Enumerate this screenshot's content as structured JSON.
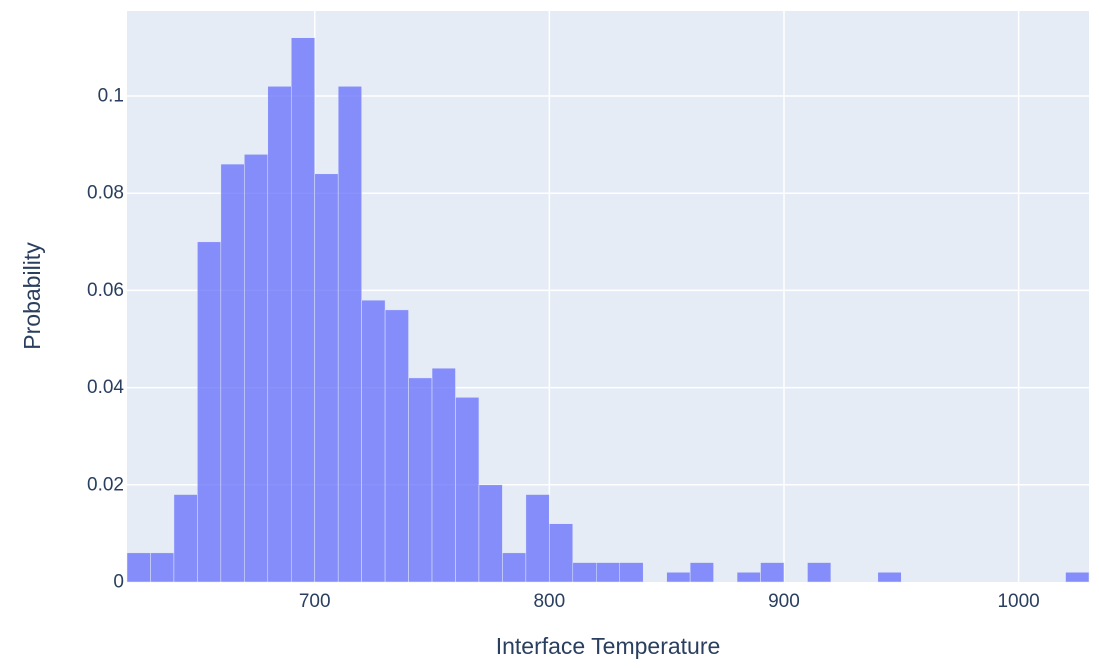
{
  "chart_data": {
    "type": "bar",
    "histogram": true,
    "title": "",
    "xlabel": "Interface Temperature",
    "ylabel": "Probability",
    "bin_width": 10,
    "xlim": [
      620,
      1030
    ],
    "ylim": [
      0,
      0.1175
    ],
    "x_ticks": [
      700,
      800,
      900,
      1000
    ],
    "x_tick_labels": [
      "700",
      "800",
      "900",
      "1000"
    ],
    "y_ticks": [
      0,
      0.02,
      0.04,
      0.06,
      0.08,
      0.1
    ],
    "y_tick_labels": [
      "0",
      "0.02",
      "0.04",
      "0.06",
      "0.08",
      "0.1"
    ],
    "grid": true,
    "bins": [
      {
        "start": 620,
        "value": 0.006
      },
      {
        "start": 630,
        "value": 0.006
      },
      {
        "start": 640,
        "value": 0.018
      },
      {
        "start": 650,
        "value": 0.07
      },
      {
        "start": 660,
        "value": 0.086
      },
      {
        "start": 670,
        "value": 0.088
      },
      {
        "start": 680,
        "value": 0.102
      },
      {
        "start": 690,
        "value": 0.112
      },
      {
        "start": 700,
        "value": 0.084
      },
      {
        "start": 710,
        "value": 0.102
      },
      {
        "start": 720,
        "value": 0.058
      },
      {
        "start": 730,
        "value": 0.056
      },
      {
        "start": 740,
        "value": 0.042
      },
      {
        "start": 750,
        "value": 0.044
      },
      {
        "start": 760,
        "value": 0.038
      },
      {
        "start": 770,
        "value": 0.02
      },
      {
        "start": 780,
        "value": 0.006
      },
      {
        "start": 790,
        "value": 0.018
      },
      {
        "start": 800,
        "value": 0.012
      },
      {
        "start": 810,
        "value": 0.004
      },
      {
        "start": 820,
        "value": 0.004
      },
      {
        "start": 830,
        "value": 0.004
      },
      {
        "start": 850,
        "value": 0.002
      },
      {
        "start": 860,
        "value": 0.004
      },
      {
        "start": 880,
        "value": 0.002
      },
      {
        "start": 890,
        "value": 0.004
      },
      {
        "start": 910,
        "value": 0.004
      },
      {
        "start": 940,
        "value": 0.002
      },
      {
        "start": 1020,
        "value": 0.002
      }
    ],
    "colors": {
      "bar": "#636efa",
      "plot_background": "#e5ecf6",
      "gridline": "#ffffff",
      "text": "#2a3f5f"
    }
  }
}
